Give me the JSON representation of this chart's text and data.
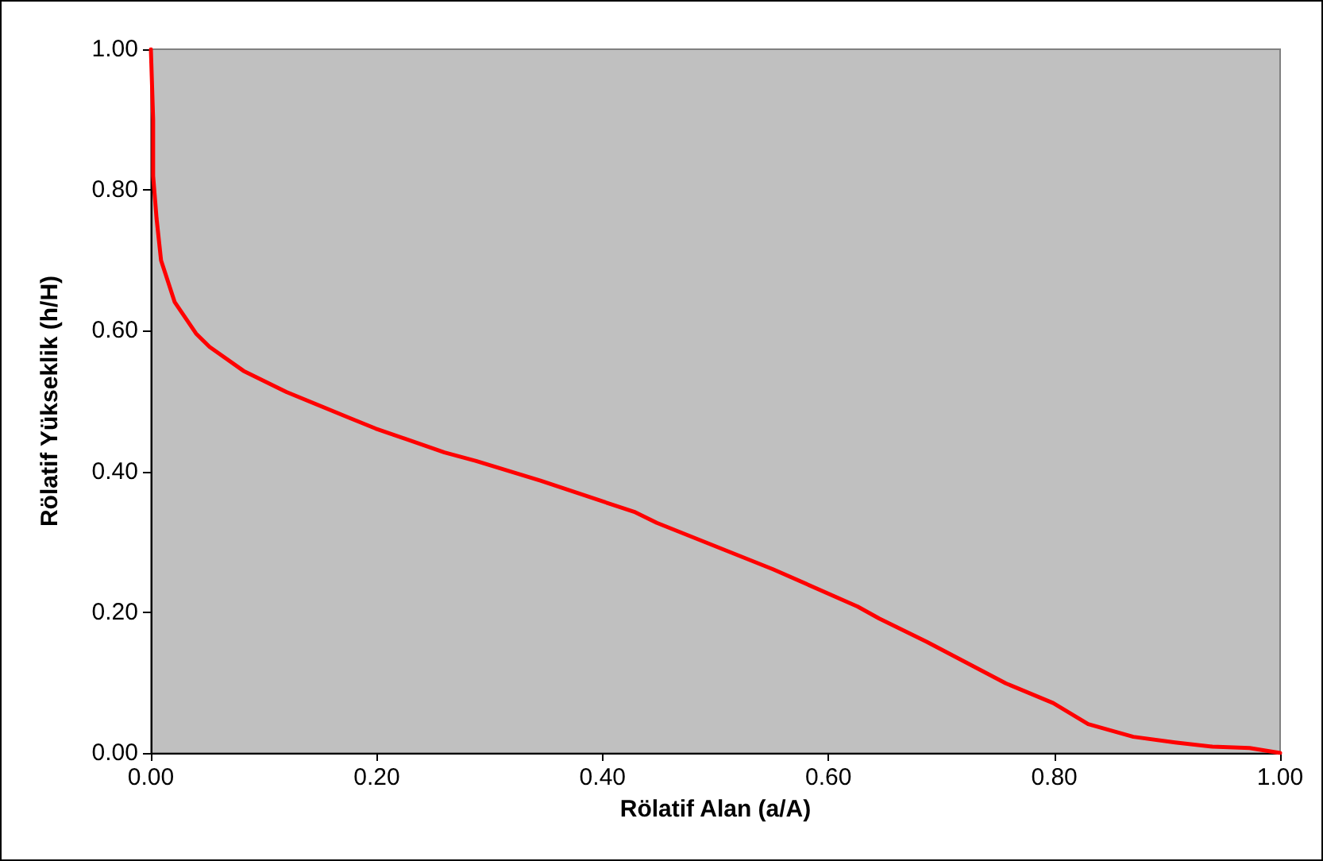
{
  "chart_data": {
    "type": "line",
    "xlabel": "Rölatif Alan (a/A)",
    "ylabel": "Rölatif Yükseklik (h/H)",
    "xlim": [
      0,
      1
    ],
    "ylim": [
      0,
      1
    ],
    "xticks": [
      {
        "value": 0,
        "label": "0.00"
      },
      {
        "value": 0.2,
        "label": "0.20"
      },
      {
        "value": 0.4,
        "label": "0.40"
      },
      {
        "value": 0.6,
        "label": "0.60"
      },
      {
        "value": 0.8,
        "label": "0.80"
      },
      {
        "value": 1,
        "label": "1.00"
      }
    ],
    "yticks": [
      {
        "value": 0,
        "label": "0.00"
      },
      {
        "value": 0.2,
        "label": "0.20"
      },
      {
        "value": 0.4,
        "label": "0.40"
      },
      {
        "value": 0.6,
        "label": "0.60"
      },
      {
        "value": 0.8,
        "label": "0.80"
      },
      {
        "value": 1,
        "label": "1.00"
      }
    ],
    "grid": false,
    "marker": "none",
    "line_style": "solid",
    "series": [
      {
        "color": "#ff0000",
        "x": [
          0,
          0.001,
          0.002,
          0.002,
          0.003,
          0.005,
          0.009,
          0.021,
          0.04,
          0.052,
          0.082,
          0.12,
          0.176,
          0.199,
          0.26,
          0.288,
          0.345,
          0.429,
          0.448,
          0.551,
          0.626,
          0.645,
          0.687,
          0.757,
          0.799,
          0.83,
          0.87,
          0.907,
          0.94,
          0.973,
          1
        ],
        "values": [
          1,
          0.95,
          0.9,
          0.82,
          0.8,
          0.76,
          0.7,
          0.641,
          0.596,
          0.577,
          0.543,
          0.513,
          0.476,
          0.461,
          0.427,
          0.415,
          0.387,
          0.342,
          0.327,
          0.261,
          0.208,
          0.191,
          0.158,
          0.099,
          0.071,
          0.041,
          0.023,
          0.015,
          0.009,
          0.007,
          0
        ]
      }
    ]
  }
}
